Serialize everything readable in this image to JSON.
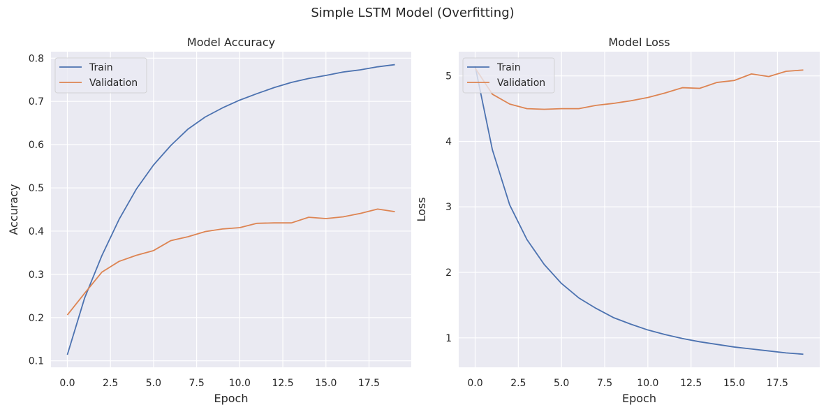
{
  "figure": {
    "title": "Simple LSTM Model (Overfitting)"
  },
  "colors": {
    "train": "#4c72b0",
    "validation": "#dd8452",
    "background": "#eaeaf2",
    "grid": "#ffffff"
  },
  "chart_data": [
    {
      "type": "line",
      "title": "Model Accuracy",
      "xlabel": "Epoch",
      "ylabel": "Accuracy",
      "xlim": [
        -0.95,
        19.95
      ],
      "ylim": [
        0.085,
        0.815
      ],
      "xticks": [
        0.0,
        2.5,
        5.0,
        7.5,
        10.0,
        12.5,
        15.0,
        17.5
      ],
      "xtick_labels": [
        "0.0",
        "2.5",
        "5.0",
        "7.5",
        "10.0",
        "12.5",
        "15.0",
        "17.5"
      ],
      "yticks": [
        0.1,
        0.2,
        0.3,
        0.4,
        0.5,
        0.6,
        0.7,
        0.8
      ],
      "ytick_labels": [
        "0.1",
        "0.2",
        "0.3",
        "0.4",
        "0.5",
        "0.6",
        "0.7",
        "0.8"
      ],
      "grid": true,
      "legend": "upper left",
      "x": [
        0,
        1,
        2,
        3,
        4,
        5,
        6,
        7,
        8,
        9,
        10,
        11,
        12,
        13,
        14,
        15,
        16,
        17,
        18,
        19
      ],
      "series": [
        {
          "name": "Train",
          "values": [
            0.114,
            0.245,
            0.343,
            0.427,
            0.497,
            0.553,
            0.598,
            0.636,
            0.664,
            0.685,
            0.703,
            0.718,
            0.732,
            0.744,
            0.753,
            0.76,
            0.768,
            0.773,
            0.78,
            0.785
          ]
        },
        {
          "name": "Validation",
          "values": [
            0.206,
            0.256,
            0.305,
            0.33,
            0.344,
            0.355,
            0.378,
            0.387,
            0.399,
            0.405,
            0.408,
            0.418,
            0.419,
            0.419,
            0.432,
            0.429,
            0.433,
            0.441,
            0.451,
            0.445
          ]
        }
      ]
    },
    {
      "type": "line",
      "title": "Model Loss",
      "xlabel": "Epoch",
      "ylabel": "Loss",
      "xlim": [
        -0.95,
        19.95
      ],
      "ylim": [
        0.55,
        5.37
      ],
      "xticks": [
        0.0,
        2.5,
        5.0,
        7.5,
        10.0,
        12.5,
        15.0,
        17.5
      ],
      "xtick_labels": [
        "0.0",
        "2.5",
        "5.0",
        "7.5",
        "10.0",
        "12.5",
        "15.0",
        "17.5"
      ],
      "yticks": [
        1,
        2,
        3,
        4,
        5
      ],
      "ytick_labels": [
        "1",
        "2",
        "3",
        "4",
        "5"
      ],
      "grid": true,
      "legend": "upper left",
      "x": [
        0,
        1,
        2,
        3,
        4,
        5,
        6,
        7,
        8,
        9,
        10,
        11,
        12,
        13,
        14,
        15,
        16,
        17,
        18,
        19
      ],
      "series": [
        {
          "name": "Train",
          "values": [
            5.15,
            3.87,
            3.03,
            2.5,
            2.12,
            1.83,
            1.61,
            1.45,
            1.31,
            1.21,
            1.12,
            1.05,
            0.99,
            0.94,
            0.9,
            0.86,
            0.83,
            0.8,
            0.77,
            0.75
          ]
        },
        {
          "name": "Validation",
          "values": [
            5.12,
            4.72,
            4.57,
            4.5,
            4.49,
            4.5,
            4.5,
            4.55,
            4.58,
            4.62,
            4.67,
            4.74,
            4.82,
            4.81,
            4.9,
            4.93,
            5.03,
            4.99,
            5.07,
            5.09
          ]
        }
      ]
    }
  ]
}
